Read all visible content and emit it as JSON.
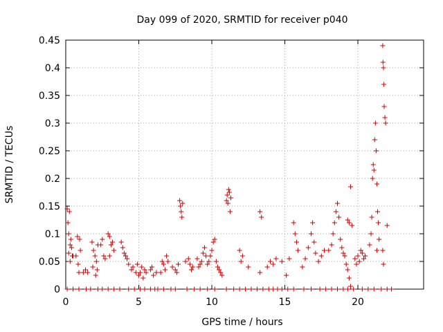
{
  "chart_data": {
    "type": "scatter",
    "title": "Day 099 of 2020, SRMTID for receiver p040",
    "xlabel": "GPS time / hours",
    "ylabel": "SRMTID / TECUs",
    "xlim": [
      0,
      24.5
    ],
    "ylim": [
      0,
      0.45
    ],
    "xticks": [
      0,
      5,
      10,
      15,
      20
    ],
    "xtick_labels": [
      "0",
      "5",
      "10",
      "15",
      "20"
    ],
    "yticks": [
      0,
      0.05,
      0.1,
      0.15,
      0.2,
      0.25,
      0.3,
      0.35,
      0.4,
      0.45
    ],
    "ytick_labels": [
      "0",
      "0.05",
      "0.1",
      "0.15",
      "0.2",
      "0.25",
      "0.3",
      "0.35",
      "0.4",
      "0.45"
    ],
    "grid": true,
    "marker": "plus",
    "color": "#cc0000",
    "series": [
      {
        "name": "SRMTID",
        "points": [
          [
            0.1,
            0.145
          ],
          [
            0.15,
            0.12
          ],
          [
            0.2,
            0.1
          ],
          [
            0.25,
            0.14
          ],
          [
            0.3,
            0.08
          ],
          [
            0.35,
            0.09
          ],
          [
            0.4,
            0.075
          ],
          [
            0.45,
            0.06
          ],
          [
            0.2,
            0.065
          ],
          [
            0.3,
            0.05
          ],
          [
            0.5,
            0.06
          ],
          [
            0.7,
            0.06
          ],
          [
            0.8,
            0.095
          ],
          [
            0.85,
            0.045
          ],
          [
            0.9,
            0.03
          ],
          [
            1.0,
            0.07
          ],
          [
            0.95,
            0.09
          ],
          [
            1.2,
            0.03
          ],
          [
            1.35,
            0.035
          ],
          [
            1.5,
            0.03
          ],
          [
            1.8,
            0.085
          ],
          [
            1.9,
            0.07
          ],
          [
            2.0,
            0.06
          ],
          [
            2.1,
            0.05
          ],
          [
            2.2,
            0.08
          ],
          [
            1.85,
            0.04
          ],
          [
            2.05,
            0.025
          ],
          [
            2.15,
            0.035
          ],
          [
            2.4,
            0.08
          ],
          [
            2.5,
            0.09
          ],
          [
            2.6,
            0.06
          ],
          [
            2.7,
            0.055
          ],
          [
            2.9,
            0.1
          ],
          [
            3.0,
            0.095
          ],
          [
            3.1,
            0.08
          ],
          [
            3.2,
            0.085
          ],
          [
            3.3,
            0.07
          ],
          [
            3.0,
            0.06
          ],
          [
            3.8,
            0.085
          ],
          [
            3.9,
            0.075
          ],
          [
            4.0,
            0.065
          ],
          [
            4.1,
            0.06
          ],
          [
            4.2,
            0.055
          ],
          [
            4.3,
            0.045
          ],
          [
            4.5,
            0.035
          ],
          [
            4.6,
            0.04
          ],
          [
            4.8,
            0.03
          ],
          [
            4.9,
            0.045
          ],
          [
            5.0,
            0.025
          ],
          [
            5.1,
            0.03
          ],
          [
            5.2,
            0.04
          ],
          [
            5.3,
            0.02
          ],
          [
            5.4,
            0.035
          ],
          [
            5.5,
            0.03
          ],
          [
            5.8,
            0.035
          ],
          [
            5.9,
            0.04
          ],
          [
            6.0,
            0.025
          ],
          [
            6.2,
            0.03
          ],
          [
            6.5,
            0.03
          ],
          [
            6.6,
            0.05
          ],
          [
            6.7,
            0.045
          ],
          [
            6.8,
            0.035
          ],
          [
            6.9,
            0.06
          ],
          [
            7.0,
            0.05
          ],
          [
            7.3,
            0.04
          ],
          [
            7.5,
            0.035
          ],
          [
            7.6,
            0.03
          ],
          [
            7.7,
            0.045
          ],
          [
            7.8,
            0.16
          ],
          [
            7.85,
            0.15
          ],
          [
            7.9,
            0.14
          ],
          [
            7.95,
            0.13
          ],
          [
            8.0,
            0.155
          ],
          [
            8.2,
            0.05
          ],
          [
            8.4,
            0.055
          ],
          [
            8.5,
            0.045
          ],
          [
            8.6,
            0.035
          ],
          [
            8.7,
            0.04
          ],
          [
            9.0,
            0.055
          ],
          [
            9.1,
            0.04
          ],
          [
            9.2,
            0.045
          ],
          [
            9.3,
            0.05
          ],
          [
            9.4,
            0.065
          ],
          [
            9.5,
            0.075
          ],
          [
            9.6,
            0.06
          ],
          [
            9.7,
            0.045
          ],
          [
            9.8,
            0.05
          ],
          [
            9.9,
            0.06
          ],
          [
            10.0,
            0.07
          ],
          [
            10.1,
            0.085
          ],
          [
            10.2,
            0.09
          ],
          [
            10.3,
            0.05
          ],
          [
            10.4,
            0.04
          ],
          [
            10.5,
            0.035
          ],
          [
            10.6,
            0.03
          ],
          [
            10.7,
            0.025
          ],
          [
            11.0,
            0.16
          ],
          [
            11.05,
            0.17
          ],
          [
            11.1,
            0.155
          ],
          [
            11.2,
            0.175
          ],
          [
            11.3,
            0.165
          ],
          [
            11.25,
            0.14
          ],
          [
            11.15,
            0.18
          ],
          [
            11.9,
            0.07
          ],
          [
            12.0,
            0.05
          ],
          [
            12.1,
            0.06
          ],
          [
            12.5,
            0.04
          ],
          [
            13.3,
            0.14
          ],
          [
            13.4,
            0.13
          ],
          [
            13.3,
            0.03
          ],
          [
            13.8,
            0.04
          ],
          [
            14.0,
            0.05
          ],
          [
            14.2,
            0.045
          ],
          [
            14.4,
            0.055
          ],
          [
            14.8,
            0.05
          ],
          [
            15.1,
            0.025
          ],
          [
            15.3,
            0.055
          ],
          [
            15.6,
            0.12
          ],
          [
            15.7,
            0.1
          ],
          [
            15.8,
            0.085
          ],
          [
            15.9,
            0.07
          ],
          [
            16.2,
            0.04
          ],
          [
            16.4,
            0.055
          ],
          [
            16.6,
            0.075
          ],
          [
            16.8,
            0.1
          ],
          [
            16.9,
            0.12
          ],
          [
            17.0,
            0.085
          ],
          [
            17.1,
            0.065
          ],
          [
            17.3,
            0.05
          ],
          [
            17.5,
            0.06
          ],
          [
            17.7,
            0.07
          ],
          [
            18.0,
            0.07
          ],
          [
            18.2,
            0.08
          ],
          [
            18.3,
            0.1
          ],
          [
            18.4,
            0.12
          ],
          [
            18.5,
            0.14
          ],
          [
            18.6,
            0.155
          ],
          [
            18.7,
            0.13
          ],
          [
            18.8,
            0.09
          ],
          [
            18.9,
            0.075
          ],
          [
            19.0,
            0.065
          ],
          [
            19.1,
            0.06
          ],
          [
            19.2,
            0.045
          ],
          [
            19.3,
            0.035
          ],
          [
            19.4,
            0.02
          ],
          [
            19.5,
            0.005
          ],
          [
            19.3,
            0.125
          ],
          [
            19.4,
            0.12
          ],
          [
            19.5,
            0.185
          ],
          [
            19.6,
            0.115
          ],
          [
            19.8,
            0.055
          ],
          [
            19.9,
            0.045
          ],
          [
            20.0,
            0.06
          ],
          [
            20.1,
            0.05
          ],
          [
            20.2,
            0.07
          ],
          [
            20.3,
            0.065
          ],
          [
            20.4,
            0.055
          ],
          [
            20.5,
            0.06
          ],
          [
            20.8,
            0.08
          ],
          [
            20.9,
            0.1
          ],
          [
            20.95,
            0.13
          ],
          [
            21.0,
            0.2
          ],
          [
            21.05,
            0.225
          ],
          [
            21.1,
            0.215
          ],
          [
            21.2,
            0.3
          ],
          [
            21.15,
            0.27
          ],
          [
            21.25,
            0.25
          ],
          [
            21.3,
            0.19
          ],
          [
            21.35,
            0.14
          ],
          [
            21.4,
            0.12
          ],
          [
            21.45,
            0.09
          ],
          [
            21.3,
            0.07
          ],
          [
            21.7,
            0.44
          ],
          [
            21.72,
            0.41
          ],
          [
            21.75,
            0.4
          ],
          [
            21.78,
            0.37
          ],
          [
            21.8,
            0.33
          ],
          [
            21.85,
            0.31
          ],
          [
            21.9,
            0.3
          ],
          [
            21.7,
            0.07
          ],
          [
            21.75,
            0.045
          ],
          [
            22.0,
            0.115
          ]
        ]
      }
    ],
    "baseline_x": [
      0.1,
      0.5,
      0.9,
      1.4,
      1.7,
      2.2,
      2.5,
      2.9,
      3.3,
      3.7,
      4.3,
      4.7,
      5.1,
      5.4,
      5.8,
      6.1,
      6.3,
      6.7,
      7.2,
      7.5,
      8.3,
      8.8,
      9.2,
      9.7,
      10.2,
      11.0,
      11.5,
      11.9,
      12.3,
      12.7,
      13.1,
      13.5,
      13.9,
      14.2,
      14.5,
      14.8,
      15.2,
      15.6,
      16.3,
      16.8,
      17.4,
      17.8,
      18.2,
      18.6,
      19.0,
      19.3,
      19.7,
      20.3,
      20.7,
      21.1,
      21.6,
      22.0,
      22.3
    ]
  }
}
